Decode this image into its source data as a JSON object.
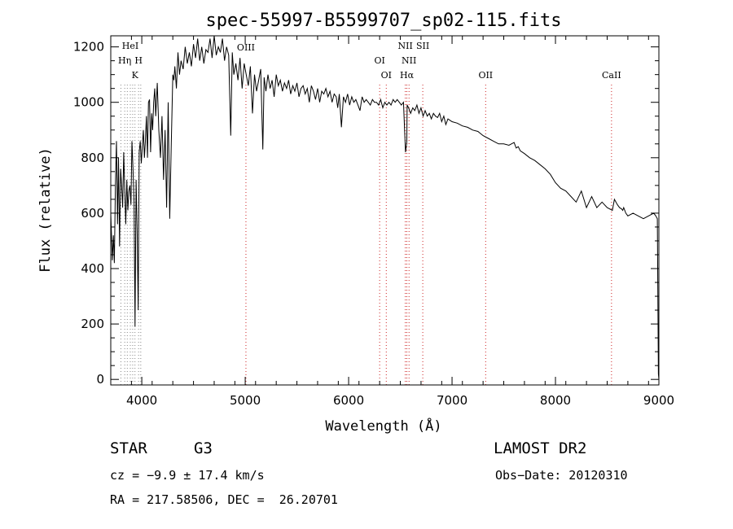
{
  "chart_data": {
    "type": "line",
    "title": "spec-55997-B5599707_sp02-115.fits",
    "xlabel": "Wavelength (Å)",
    "ylabel": "Flux (relative)",
    "xlim": [
      3700,
      9000
    ],
    "ylim": [
      -20,
      1240
    ],
    "xticks": [
      4000,
      5000,
      6000,
      7000,
      8000,
      9000
    ],
    "xtick_labels": [
      "4000",
      "5000",
      "6000",
      "7000",
      "8000",
      "9000"
    ],
    "yticks": [
      0,
      200,
      400,
      600,
      800,
      1000,
      1200
    ],
    "ytick_labels": [
      "0",
      "200",
      "400",
      "600",
      "800",
      "1000",
      "1200"
    ],
    "grid": false,
    "series": [
      {
        "name": "flux",
        "color": "#000000",
        "x": [
          3700,
          3715,
          3725,
          3735,
          3745,
          3755,
          3765,
          3775,
          3785,
          3795,
          3805,
          3815,
          3825,
          3835,
          3845,
          3855,
          3865,
          3875,
          3885,
          3895,
          3905,
          3915,
          3925,
          3935,
          3945,
          3955,
          3965,
          3975,
          3985,
          3995,
          4005,
          4015,
          4025,
          4035,
          4045,
          4055,
          4065,
          4075,
          4085,
          4095,
          4105,
          4115,
          4125,
          4135,
          4150,
          4165,
          4180,
          4195,
          4210,
          4225,
          4240,
          4255,
          4270,
          4285,
          4300,
          4310,
          4320,
          4335,
          4350,
          4365,
          4380,
          4400,
          4420,
          4440,
          4460,
          4480,
          4500,
          4520,
          4540,
          4560,
          4580,
          4600,
          4620,
          4640,
          4660,
          4680,
          4700,
          4720,
          4740,
          4760,
          4780,
          4800,
          4820,
          4840,
          4860,
          4875,
          4890,
          4910,
          4930,
          4950,
          4970,
          4990,
          5010,
          5030,
          5050,
          5070,
          5090,
          5110,
          5130,
          5150,
          5170,
          5183,
          5200,
          5220,
          5240,
          5260,
          5280,
          5300,
          5320,
          5340,
          5360,
          5380,
          5400,
          5420,
          5440,
          5460,
          5480,
          5500,
          5520,
          5540,
          5560,
          5580,
          5600,
          5620,
          5640,
          5660,
          5680,
          5700,
          5720,
          5740,
          5760,
          5780,
          5800,
          5820,
          5840,
          5860,
          5880,
          5895,
          5910,
          5930,
          5950,
          5970,
          5990,
          6010,
          6030,
          6050,
          6070,
          6090,
          6110,
          6130,
          6150,
          6170,
          6190,
          6210,
          6230,
          6250,
          6270,
          6290,
          6310,
          6330,
          6350,
          6370,
          6390,
          6410,
          6430,
          6450,
          6470,
          6490,
          6510,
          6530,
          6550,
          6560,
          6563,
          6566,
          6580,
          6600,
          6620,
          6640,
          6660,
          6680,
          6700,
          6720,
          6740,
          6760,
          6780,
          6800,
          6820,
          6840,
          6860,
          6880,
          6900,
          6920,
          6940,
          6960,
          6980,
          7000,
          7050,
          7100,
          7150,
          7200,
          7250,
          7300,
          7350,
          7400,
          7450,
          7500,
          7550,
          7600,
          7620,
          7640,
          7660,
          7700,
          7750,
          7800,
          7850,
          7900,
          7950,
          8000,
          8050,
          8100,
          8150,
          8200,
          8250,
          8300,
          8350,
          8400,
          8450,
          8500,
          8550,
          8570,
          8600,
          8620,
          8640,
          8650,
          8660,
          8680,
          8700,
          8750,
          8800,
          8850,
          8900,
          8950,
          8970,
          8985,
          8995,
          9000
        ],
        "y": [
          600,
          430,
          520,
          420,
          700,
          860,
          560,
          800,
          480,
          760,
          700,
          620,
          820,
          690,
          560,
          720,
          610,
          680,
          700,
          630,
          860,
          760,
          640,
          190,
          720,
          540,
          250,
          820,
          860,
          780,
          840,
          900,
          800,
          860,
          950,
          800,
          1000,
          1010,
          820,
          960,
          900,
          1000,
          1050,
          950,
          1070,
          900,
          800,
          950,
          720,
          900,
          620,
          1000,
          580,
          850,
          1100,
          1080,
          1130,
          1050,
          1180,
          1100,
          1150,
          1120,
          1200,
          1140,
          1180,
          1130,
          1210,
          1160,
          1230,
          1150,
          1200,
          1140,
          1190,
          1180,
          1230,
          1160,
          1240,
          1170,
          1200,
          1180,
          1230,
          1150,
          1200,
          1170,
          880,
          1180,
          1100,
          1140,
          1080,
          1160,
          1050,
          1140,
          1100,
          1060,
          1130,
          960,
          1100,
          1040,
          1080,
          1120,
          830,
          1090,
          1040,
          1100,
          1050,
          1080,
          1020,
          1100,
          1060,
          1080,
          1040,
          1070,
          1050,
          1080,
          1030,
          1060,
          1040,
          1070,
          1020,
          1050,
          1060,
          1030,
          1050,
          1000,
          1060,
          1040,
          1010,
          1050,
          1000,
          1040,
          1030,
          1050,
          1020,
          1040,
          1000,
          1030,
          1020,
          980,
          1030,
          910,
          1020,
          1000,
          1030,
          990,
          1020,
          1000,
          1010,
          990,
          970,
          1020,
          1000,
          1010,
          1000,
          990,
          1010,
          1000,
          1000,
          990,
          1010,
          980,
          1000,
          990,
          1000,
          990,
          1010,
          1000,
          1010,
          1000,
          990,
          1000,
          820,
          850,
          860,
          990,
          980,
          960,
          980,
          970,
          990,
          960,
          980,
          950,
          970,
          950,
          960,
          940,
          960,
          950,
          945,
          960,
          930,
          950,
          920,
          940,
          935,
          930,
          925,
          915,
          910,
          900,
          895,
          880,
          870,
          860,
          850,
          850,
          845,
          855,
          835,
          840,
          825,
          815,
          800,
          790,
          775,
          760,
          740,
          710,
          690,
          680,
          660,
          640,
          680,
          620,
          660,
          620,
          640,
          620,
          610,
          650,
          630,
          620,
          615,
          610,
          620,
          600,
          590,
          600,
          590,
          580,
          590,
          600,
          590,
          580,
          20,
          0
        ]
      }
    ],
    "line_markers": [
      {
        "label": "HeI",
        "wavelength": 3889,
        "color": "#888888"
      },
      {
        "label": "Hη",
        "wavelength": 3835,
        "color": "#888888"
      },
      {
        "label": "H",
        "wavelength": 3969,
        "color": "#888888"
      },
      {
        "label": "K",
        "wavelength": 3934,
        "color": "#888888"
      },
      {
        "label": "",
        "wavelength": 3798,
        "color": "#888888"
      },
      {
        "label": "",
        "wavelength": 3860,
        "color": "#888888"
      },
      {
        "label": "",
        "wavelength": 3912,
        "color": "#888888"
      },
      {
        "label": "",
        "wavelength": 3990,
        "color": "#888888"
      },
      {
        "label": "OIII",
        "wavelength": 5007,
        "color": "#cc2222"
      },
      {
        "label": "OI",
        "wavelength": 6300,
        "color": "#cc2222"
      },
      {
        "label": "OI",
        "wavelength": 6364,
        "color": "#cc2222"
      },
      {
        "label": "NII",
        "wavelength": 6548,
        "color": "#cc2222"
      },
      {
        "label": "NII",
        "wavelength": 6584,
        "color": "#cc2222"
      },
      {
        "label": "Hα",
        "wavelength": 6563,
        "color": "#cc2222"
      },
      {
        "label": "SII",
        "wavelength": 6717,
        "color": "#cc2222"
      },
      {
        "label": "OII",
        "wavelength": 7325,
        "color": "#cc2222"
      },
      {
        "label": "CaII",
        "wavelength": 8542,
        "color": "#cc2222"
      }
    ]
  },
  "info": {
    "class": "STAR",
    "subclass": "G3",
    "survey": "LAMOST DR2",
    "cz": "cz = −9.9 ± 17.4 km/s",
    "obs_date": "Obs−Date: 20120310",
    "radec": "RA = 217.58506, DEC =  26.20701"
  }
}
